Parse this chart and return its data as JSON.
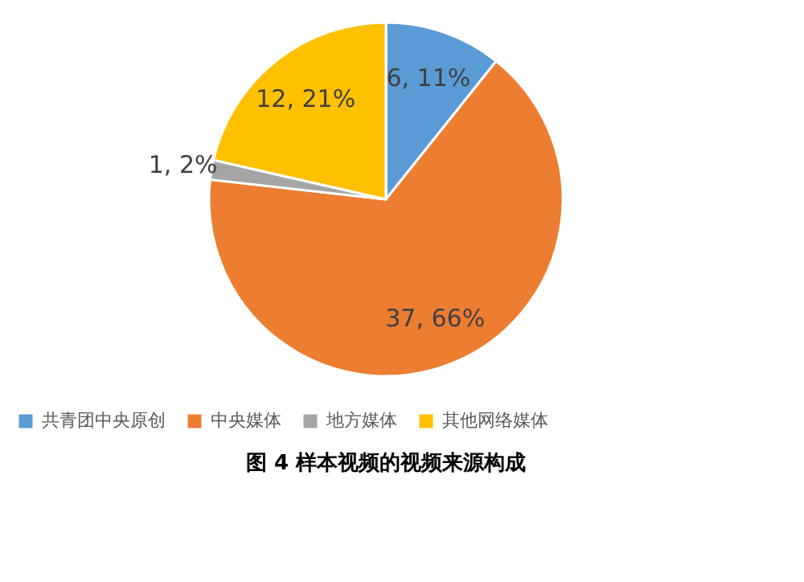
{
  "chart_data": {
    "type": "pie",
    "title": "图 4 样本视频的视频来源构成",
    "categories": [
      "共青团中央原创",
      "中央媒体",
      "地方媒体",
      "其他网络媒体"
    ],
    "values": [
      6,
      37,
      1,
      12
    ],
    "colors": [
      "#5b9bd5",
      "#ed7d31",
      "#a5a5a5",
      "#ffc000"
    ],
    "value_labels": [
      "6, 11%",
      "37, 66%",
      "1, 2%",
      "12, 21%"
    ],
    "legend": "bottom"
  }
}
